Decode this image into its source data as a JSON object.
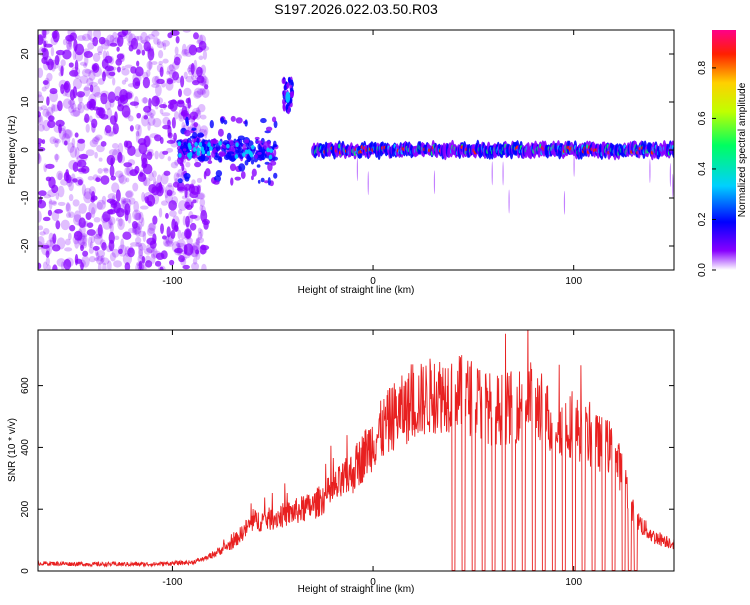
{
  "title": "S197.2026.022.03.50.R03",
  "chart_data": [
    {
      "type": "heatmap",
      "name": "spectrogram",
      "xlabel": "Height of straight line (km)",
      "ylabel": "Frequency (Hz)",
      "xlim": [
        -167,
        150
      ],
      "ylim": [
        -25,
        25
      ],
      "xticks": [
        -100,
        0,
        100
      ],
      "yticks": [
        -20,
        -10,
        0,
        10,
        20
      ],
      "colorbar": {
        "label": "Normalized spectral amplitude",
        "range": [
          0.0,
          0.95
        ],
        "ticks": [
          "0.0",
          "0.2",
          "0.4",
          "0.6",
          "0.8"
        ],
        "colors": [
          "#ffffff",
          "#8800ff",
          "#0000ff",
          "#00d0ff",
          "#00ff60",
          "#c0ff00",
          "#ffd000",
          "#ff2000",
          "#ff0088"
        ]
      },
      "features": [
        {
          "region": "noise",
          "x_range": [
            -167,
            -83
          ],
          "freq_range": [
            -25,
            25
          ]
        },
        {
          "region": "early-signal",
          "x_range": [
            -97,
            -48
          ],
          "center_freq": 0,
          "freq_spread": [
            -8,
            6
          ]
        },
        {
          "region": "tone-burst",
          "x_range": [
            -45,
            -40
          ],
          "center_freq": 11,
          "freq_spread": [
            8,
            15
          ]
        },
        {
          "region": "carrier",
          "x_range": [
            -30,
            150
          ],
          "center_freq": 0,
          "freq_spread": [
            -2,
            2
          ]
        }
      ]
    },
    {
      "type": "line",
      "name": "snr",
      "xlabel": "Height of straight line (km)",
      "ylabel": "SNR (10 * v/v)",
      "xlim": [
        -167,
        150
      ],
      "ylim": [
        0,
        780
      ],
      "xticks": [
        -100,
        0,
        100
      ],
      "yticks": [
        0,
        200,
        400,
        600
      ],
      "color": "#e82020",
      "series": [
        {
          "name": "SNR",
          "envelope_x": [
            -167,
            -140,
            -110,
            -90,
            -82,
            -70,
            -60,
            -50,
            -40,
            -30,
            -20,
            -10,
            0,
            10,
            20,
            30,
            40,
            50,
            60,
            70,
            80,
            90,
            100,
            110,
            118,
            125,
            130,
            135,
            140,
            145,
            150
          ],
          "envelope_y": [
            25,
            22,
            22,
            28,
            45,
            90,
            160,
            170,
            190,
            210,
            260,
            320,
            420,
            500,
            540,
            570,
            580,
            560,
            520,
            530,
            560,
            480,
            470,
            420,
            400,
            310,
            180,
            140,
            110,
            100,
            90
          ],
          "dropouts": [
            40,
            45,
            50,
            55,
            60,
            65,
            70,
            75,
            80,
            85,
            90,
            95,
            100,
            105,
            110,
            115,
            120,
            125,
            128,
            131
          ]
        }
      ]
    }
  ]
}
